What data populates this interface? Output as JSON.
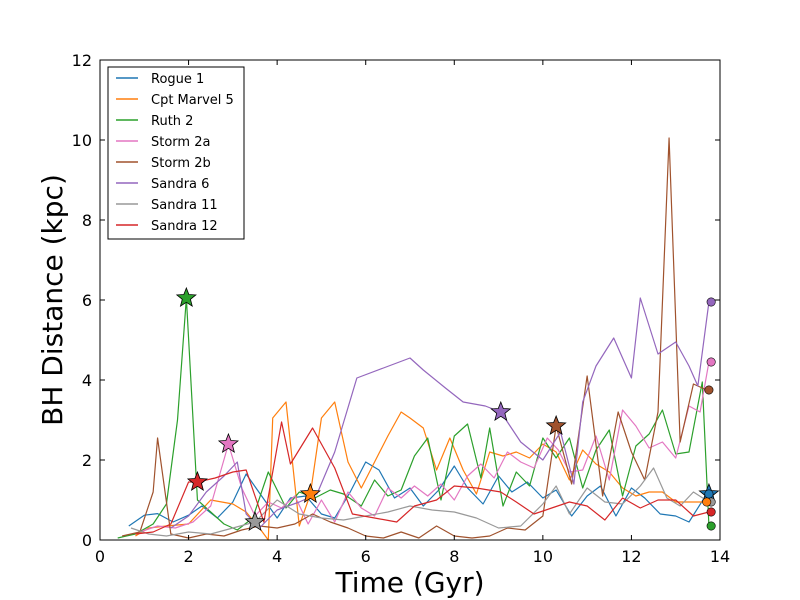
{
  "chart_data": {
    "type": "line",
    "title": "",
    "xlabel": "Time (Gyr)",
    "ylabel": "BH Distance (kpc)",
    "xlim": [
      0,
      14
    ],
    "ylim": [
      0,
      12
    ],
    "xticks": [
      0,
      2,
      4,
      6,
      8,
      10,
      12,
      14
    ],
    "yticks": [
      0,
      2,
      4,
      6,
      8,
      10,
      12
    ],
    "grid": false,
    "legend_position": "top-left",
    "series": [
      {
        "name": "Rogue 1",
        "color": "#1f77b4",
        "x": [
          0.65,
          1.0,
          1.3,
          1.65,
          2.0,
          2.3,
          2.65,
          3.0,
          3.3,
          3.65,
          4.0,
          4.3,
          4.65,
          5.0,
          5.3,
          5.65,
          6.0,
          6.3,
          6.65,
          7.0,
          7.3,
          7.65,
          8.0,
          8.3,
          8.65,
          9.0,
          9.3,
          9.65,
          10.0,
          10.3,
          10.65,
          11.0,
          11.3,
          11.65,
          12.0,
          12.3,
          12.65,
          13.0,
          13.3,
          13.7
        ],
        "y": [
          0.35,
          0.62,
          0.66,
          0.45,
          0.62,
          0.85,
          0.55,
          0.95,
          1.65,
          1.1,
          0.55,
          1.05,
          1.1,
          0.65,
          0.55,
          1.2,
          1.95,
          1.75,
          1.05,
          1.3,
          0.85,
          1.25,
          1.85,
          1.3,
          0.9,
          1.6,
          1.2,
          1.45,
          1.05,
          1.25,
          0.6,
          1.1,
          1.35,
          0.6,
          1.3,
          1.05,
          0.65,
          0.6,
          0.45,
          1.15
        ],
        "marker": {
          "shape": "circle",
          "x": 13.75,
          "y": 1.15
        }
      },
      {
        "name": "Cpt Marvel 5",
        "color": "#ff7f0e",
        "x": [
          0.8,
          1.1,
          1.5,
          2.0,
          2.5,
          3.0,
          3.3,
          3.6,
          3.8,
          3.9,
          4.2,
          4.5,
          4.75,
          5.0,
          5.3,
          5.6,
          5.9,
          6.2,
          6.5,
          6.8,
          7.0,
          7.3,
          7.6,
          7.9,
          8.2,
          8.5,
          8.8,
          9.1,
          9.4,
          9.7,
          10.0,
          10.3,
          10.6,
          10.9,
          11.2,
          11.5,
          11.8,
          12.1,
          12.4,
          12.7,
          13.0,
          13.3,
          13.7
        ],
        "y": [
          0.1,
          0.3,
          0.35,
          0.4,
          1.0,
          0.9,
          0.7,
          0.3,
          0.0,
          3.05,
          3.45,
          0.35,
          1.15,
          3.05,
          3.45,
          1.95,
          1.3,
          1.95,
          2.6,
          3.2,
          3.05,
          2.8,
          1.75,
          2.55,
          1.75,
          1.15,
          2.2,
          2.1,
          2.2,
          2.05,
          2.4,
          2.2,
          1.5,
          2.25,
          1.9,
          1.7,
          1.3,
          1.1,
          1.2,
          1.2,
          0.95,
          0.95,
          0.95
        ],
        "marker": {
          "shape": "star",
          "x": 4.75,
          "y": 1.15
        }
      },
      {
        "name": "Ruth 2",
        "color": "#2ca02c",
        "x": [
          0.4,
          0.8,
          1.2,
          1.5,
          1.75,
          1.95,
          2.2,
          2.5,
          2.8,
          3.1,
          3.45,
          3.8,
          4.2,
          4.5,
          4.85,
          5.2,
          5.5,
          5.9,
          6.2,
          6.5,
          6.8,
          7.1,
          7.4,
          7.7,
          8.0,
          8.3,
          8.6,
          8.8,
          9.1,
          9.4,
          9.7,
          10.0,
          10.3,
          10.6,
          10.9,
          11.2,
          11.5,
          11.8,
          12.1,
          12.4,
          12.7,
          13.0,
          13.3,
          13.6,
          13.75
        ],
        "y": [
          0.05,
          0.15,
          0.4,
          0.9,
          3.0,
          6.05,
          1.0,
          0.7,
          0.4,
          0.25,
          0.55,
          1.7,
          0.8,
          1.2,
          1.05,
          1.25,
          1.15,
          0.85,
          1.5,
          1.1,
          1.25,
          2.1,
          2.55,
          1.0,
          2.6,
          2.9,
          1.55,
          2.8,
          0.85,
          1.7,
          1.35,
          2.55,
          2.05,
          2.55,
          1.3,
          2.25,
          2.75,
          1.1,
          2.35,
          2.65,
          3.25,
          2.15,
          2.2,
          3.95,
          0.35
        ],
        "marker": {
          "shape": "star",
          "x": 1.95,
          "y": 6.05
        }
      },
      {
        "name": "Storm 2a",
        "color": "#e377c2",
        "x": [
          0.9,
          1.3,
          1.7,
          2.1,
          2.5,
          2.9,
          3.2,
          3.5,
          3.8,
          4.1,
          4.4,
          4.7,
          5.0,
          5.3,
          5.6,
          5.9,
          6.2,
          6.5,
          6.8,
          7.1,
          7.4,
          7.7,
          8.0,
          8.3,
          8.6,
          8.9,
          9.2,
          9.5,
          9.8,
          10.1,
          10.35,
          10.6,
          10.9,
          11.2,
          11.5,
          11.8,
          12.1,
          12.4,
          12.7,
          13.0,
          13.3,
          13.55,
          13.75
        ],
        "y": [
          0.2,
          0.35,
          0.3,
          0.45,
          0.85,
          2.4,
          1.3,
          0.6,
          0.95,
          0.8,
          1.1,
          0.4,
          1.0,
          0.45,
          1.2,
          0.8,
          0.6,
          1.3,
          1.05,
          1.35,
          1.1,
          1.4,
          1.0,
          1.6,
          1.9,
          1.55,
          2.2,
          1.95,
          1.8,
          2.55,
          2.25,
          1.7,
          1.75,
          2.6,
          1.5,
          3.25,
          2.85,
          2.3,
          2.45,
          2.05,
          3.35,
          3.2,
          4.45
        ],
        "marker": {
          "shape": "star",
          "x": 2.9,
          "y": 2.4
        }
      },
      {
        "name": "Storm 2b",
        "color": "#a0522d",
        "x": [
          0.5,
          0.9,
          1.2,
          1.3,
          1.6,
          2.0,
          2.4,
          2.8,
          3.2,
          3.6,
          4.0,
          4.4,
          4.8,
          5.2,
          5.6,
          6.0,
          6.4,
          6.8,
          7.2,
          7.6,
          8.0,
          8.4,
          8.8,
          9.2,
          9.6,
          10.0,
          10.3,
          10.65,
          11.0,
          11.35,
          11.7,
          12.0,
          12.3,
          12.6,
          12.85,
          13.1,
          13.4,
          13.7
        ],
        "y": [
          0.1,
          0.2,
          1.2,
          2.55,
          0.15,
          0.05,
          0.15,
          0.1,
          0.25,
          0.35,
          0.3,
          0.4,
          0.65,
          0.45,
          0.3,
          0.1,
          0.05,
          0.2,
          0.05,
          0.35,
          0.1,
          0.05,
          0.1,
          0.3,
          0.25,
          0.6,
          2.85,
          1.4,
          4.1,
          1.1,
          3.2,
          2.2,
          1.5,
          3.2,
          10.05,
          2.45,
          3.9,
          3.75
        ],
        "marker": {
          "shape": "star",
          "x": 10.3,
          "y": 2.85
        }
      },
      {
        "name": "Sandra 6",
        "color": "#9467bd",
        "x": [
          1.6,
          2.0,
          2.4,
          2.8,
          3.1,
          3.3,
          3.6,
          4.0,
          4.5,
          4.9,
          5.3,
          5.8,
          6.4,
          7.0,
          7.3,
          7.8,
          8.2,
          8.7,
          9.05,
          9.5,
          10.0,
          10.4,
          10.7,
          10.9,
          11.2,
          11.6,
          12.0,
          12.2,
          12.6,
          13.0,
          13.3,
          13.5,
          13.75
        ],
        "y": [
          0.3,
          0.6,
          1.2,
          1.6,
          1.95,
          0.65,
          0.3,
          0.75,
          0.95,
          1.15,
          2.2,
          4.05,
          4.3,
          4.55,
          4.25,
          3.8,
          3.45,
          3.35,
          3.2,
          2.45,
          2.0,
          2.7,
          1.4,
          3.45,
          4.35,
          5.05,
          4.05,
          6.05,
          4.65,
          4.95,
          4.35,
          3.85,
          5.95
        ],
        "marker": {
          "shape": "star",
          "x": 9.05,
          "y": 3.2
        }
      },
      {
        "name": "Sandra 11",
        "color": "#999999",
        "x": [
          0.7,
          1.1,
          1.5,
          2.0,
          2.5,
          3.0,
          3.5,
          4.0,
          4.5,
          5.0,
          5.5,
          6.0,
          6.5,
          7.0,
          7.5,
          8.0,
          8.5,
          9.0,
          9.5,
          10.0,
          10.3,
          10.6,
          11.0,
          11.4,
          11.8,
          12.2,
          12.5,
          12.8,
          13.1,
          13.4,
          13.75
        ],
        "y": [
          0.3,
          0.15,
          0.1,
          0.2,
          0.15,
          0.3,
          0.45,
          1.0,
          0.65,
          0.55,
          0.5,
          0.6,
          0.7,
          0.85,
          0.75,
          0.7,
          0.55,
          0.3,
          0.35,
          0.9,
          1.35,
          0.65,
          1.3,
          0.95,
          0.9,
          1.35,
          1.8,
          1.05,
          0.85,
          1.2,
          0.95
        ],
        "marker": {
          "shape": "star",
          "x": 3.5,
          "y": 0.45
        }
      },
      {
        "name": "Sandra 12",
        "color": "#d62728",
        "x": [
          0.8,
          1.2,
          1.6,
          2.0,
          2.2,
          2.6,
          3.0,
          3.3,
          3.7,
          4.1,
          4.3,
          4.8,
          5.3,
          5.7,
          6.2,
          6.7,
          7.1,
          7.6,
          8.0,
          8.5,
          9.05,
          9.4,
          9.8,
          10.2,
          10.6,
          11.0,
          11.4,
          11.8,
          12.2,
          12.6,
          13.0,
          13.4,
          13.75
        ],
        "y": [
          0.15,
          0.2,
          0.4,
          1.45,
          1.45,
          1.55,
          1.7,
          1.75,
          0.45,
          2.95,
          1.9,
          2.8,
          1.8,
          0.65,
          0.55,
          0.45,
          0.85,
          1.0,
          1.35,
          1.3,
          1.2,
          0.95,
          0.65,
          0.8,
          0.95,
          0.85,
          0.5,
          1.05,
          0.8,
          1.0,
          1.0,
          0.6,
          0.7
        ],
        "marker": {
          "shape": "star",
          "x": 2.2,
          "y": 1.45
        }
      }
    ],
    "end_markers": [
      {
        "series": "Sandra 6",
        "color": "#9467bd",
        "x": 13.8,
        "y": 5.95
      },
      {
        "series": "Storm 2a",
        "color": "#e377c2",
        "x": 13.8,
        "y": 4.45
      },
      {
        "series": "Storm 2b",
        "color": "#a0522d",
        "x": 13.75,
        "y": 3.75
      },
      {
        "series": "Rogue 1",
        "color": "#1f77b4",
        "x": 13.75,
        "y": 1.15
      },
      {
        "series": "Sandra 11",
        "color": "#999999",
        "x": 13.8,
        "y": 0.95
      },
      {
        "series": "Cpt Marvel 5",
        "color": "#ff7f0e",
        "x": 13.7,
        "y": 0.95
      },
      {
        "series": "Sandra 12",
        "color": "#d62728",
        "x": 13.8,
        "y": 0.7
      },
      {
        "series": "Ruth 2",
        "color": "#2ca02c",
        "x": 13.8,
        "y": 0.35
      }
    ]
  }
}
